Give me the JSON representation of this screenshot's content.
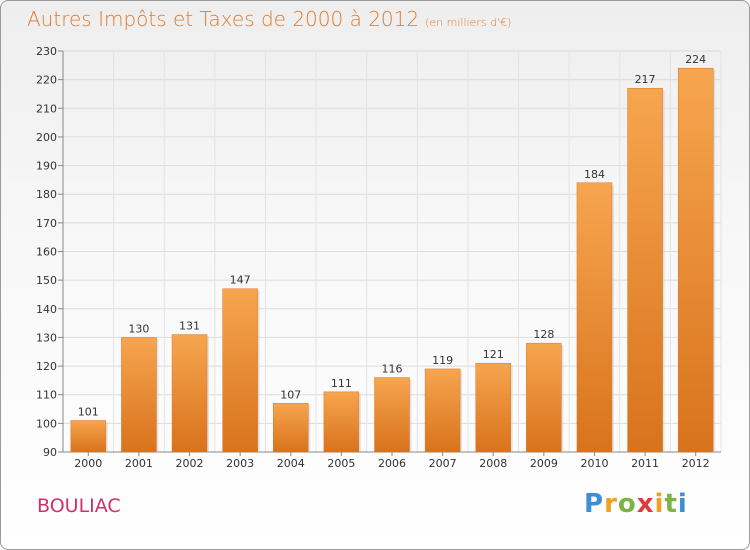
{
  "chart_data": {
    "type": "bar",
    "title": "Autres Impôts et Taxes de 2000 à 2012",
    "subtitle": "(en milliers d'€)",
    "categories": [
      "2000",
      "2001",
      "2002",
      "2003",
      "2004",
      "2005",
      "2006",
      "2007",
      "2008",
      "2009",
      "2010",
      "2011",
      "2012"
    ],
    "values": [
      101,
      130,
      131,
      147,
      107,
      111,
      116,
      119,
      121,
      128,
      184,
      217,
      224
    ],
    "ylim": [
      90,
      230
    ],
    "yticks": [
      90,
      100,
      110,
      120,
      130,
      140,
      150,
      160,
      170,
      180,
      190,
      200,
      210,
      220,
      230
    ],
    "grid": true,
    "bar_color": "#f08a2e",
    "xlabel": "",
    "ylabel": ""
  },
  "commune": "BOULIAC",
  "logo": {
    "letters": [
      "P",
      "r",
      "o",
      "x",
      "i",
      "t",
      "i"
    ],
    "colors": [
      "#3b8fd6",
      "#f0a020",
      "#7cb342",
      "#e03a3a",
      "#f0a020",
      "#7cb342",
      "#3b8fd6"
    ]
  }
}
